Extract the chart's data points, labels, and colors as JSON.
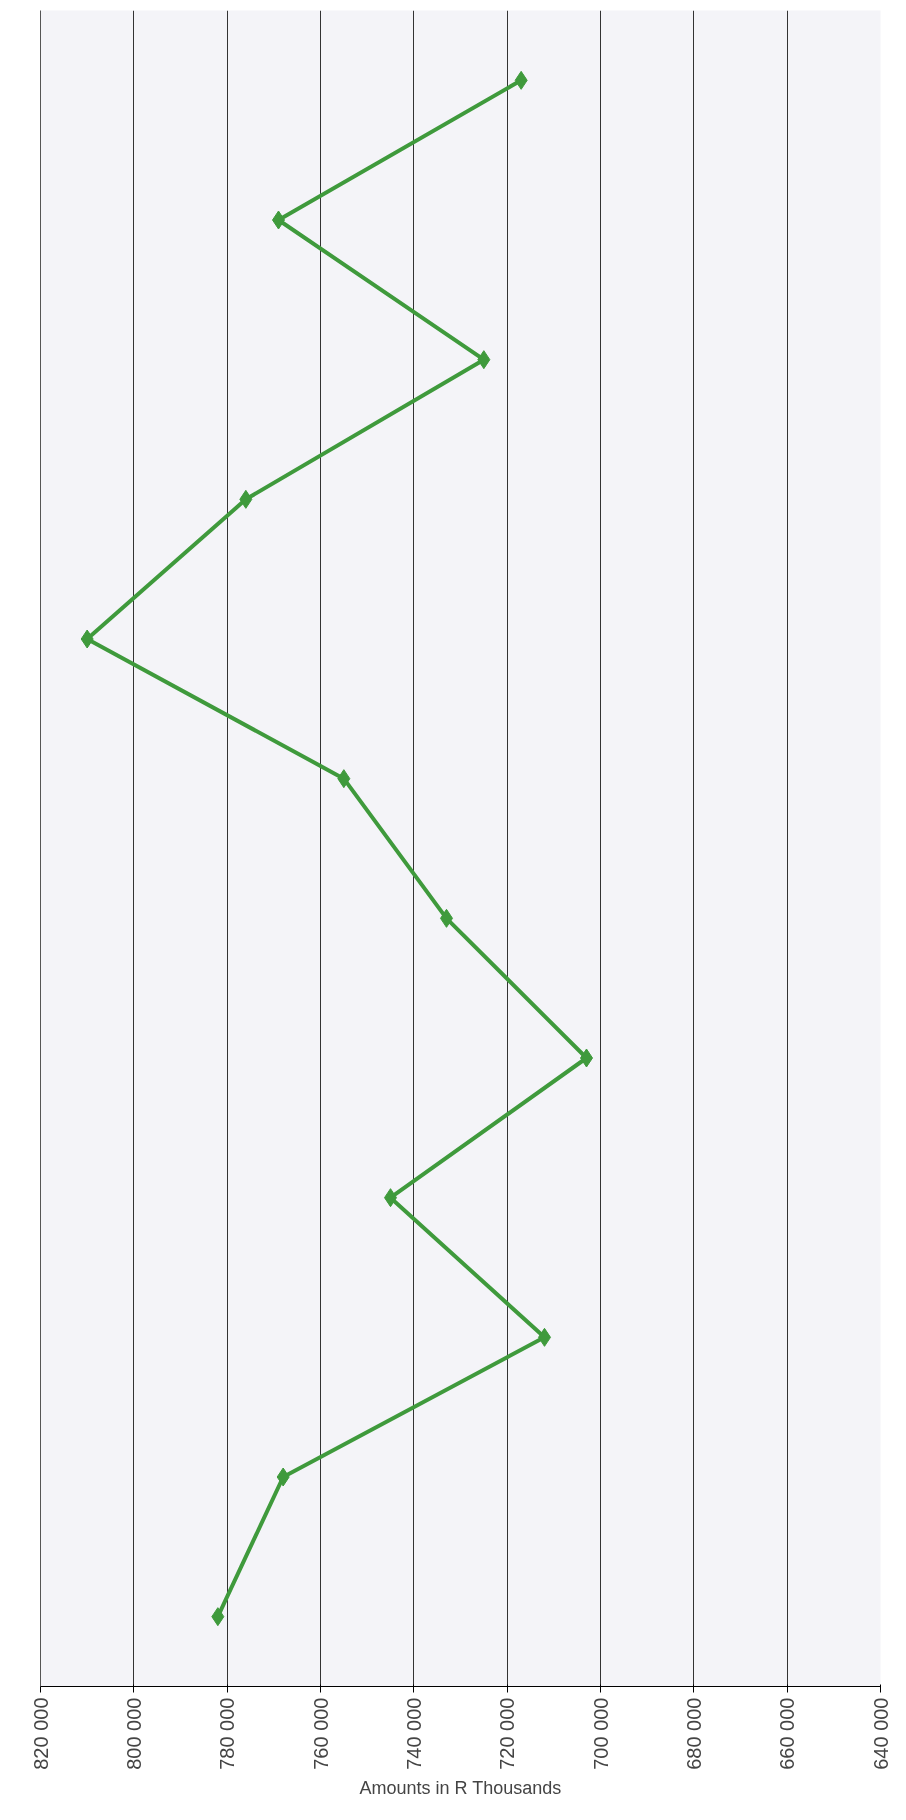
{
  "chart_data": {
    "type": "line",
    "orientation": "horizontal",
    "xlabel": "Amounts in R Thousands",
    "categories": [
      null,
      null,
      null,
      null,
      null,
      null,
      null,
      null,
      null,
      null,
      null,
      null
    ],
    "series": [
      {
        "color": "#3f9a3c",
        "values": [
          717000,
          769000,
          725000,
          776000,
          810000,
          755000,
          733000,
          703000,
          745000,
          712000,
          768000,
          782000
        ]
      }
    ],
    "xlim": [
      820000,
      640000
    ],
    "xticks": [
      {
        "value": 820000,
        "label": "820 000"
      },
      {
        "value": 800000,
        "label": "800 000"
      },
      {
        "value": 780000,
        "label": "780 000"
      },
      {
        "value": 760000,
        "label": "760 000"
      },
      {
        "value": 740000,
        "label": "740 000"
      },
      {
        "value": 720000,
        "label": "720 000"
      },
      {
        "value": 700000,
        "label": "700 000"
      },
      {
        "value": 680000,
        "label": "680 000"
      },
      {
        "value": 660000,
        "label": "660 000"
      },
      {
        "value": 640000,
        "label": "640 000"
      }
    ],
    "grid": "x",
    "marker": "diamond",
    "line_style": "solid",
    "tick_labels": "x"
  }
}
